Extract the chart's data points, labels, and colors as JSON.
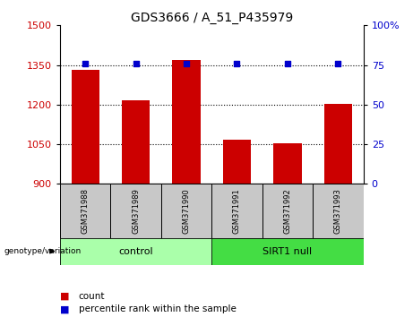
{
  "title": "GDS3666 / A_51_P435979",
  "samples": [
    "GSM371988",
    "GSM371989",
    "GSM371990",
    "GSM371991",
    "GSM371992",
    "GSM371993"
  ],
  "counts": [
    1332,
    1215,
    1370,
    1068,
    1052,
    1202
  ],
  "percentiles": [
    76,
    76,
    76,
    76,
    76,
    76
  ],
  "ylim_left": [
    900,
    1500
  ],
  "ylim_right": [
    0,
    100
  ],
  "yticks_left": [
    900,
    1050,
    1200,
    1350,
    1500
  ],
  "yticks_right": [
    0,
    25,
    50,
    75,
    100
  ],
  "yticklabels_right": [
    "0",
    "25",
    "50",
    "75",
    "100%"
  ],
  "hgrid_values": [
    1050,
    1200,
    1350
  ],
  "bar_color": "#cc0000",
  "dot_color": "#0000cc",
  "bar_width": 0.55,
  "groups": [
    {
      "label": "control",
      "indices": [
        0,
        1,
        2
      ],
      "color": "#aaffaa"
    },
    {
      "label": "SIRT1 null",
      "indices": [
        3,
        4,
        5
      ],
      "color": "#44dd44"
    }
  ],
  "group_label_text": "genotype/variation",
  "legend_count_label": "count",
  "legend_percentile_label": "percentile rank within the sample",
  "background_color": "#ffffff",
  "sample_box_color": "#c8c8c8",
  "base_value": 900,
  "title_fontsize": 10,
  "tick_fontsize": 8,
  "sample_fontsize": 6,
  "group_fontsize": 8,
  "legend_fontsize": 7.5
}
